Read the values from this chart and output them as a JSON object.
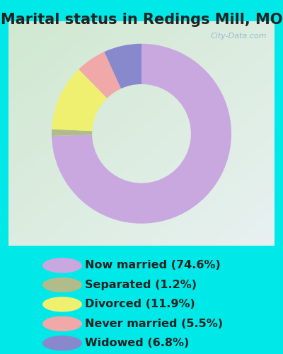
{
  "title": "Marital status in Redings Mill, MO",
  "slices": [
    74.6,
    1.2,
    11.9,
    5.5,
    6.8
  ],
  "labels": [
    "Now married (74.6%)",
    "Separated (1.2%)",
    "Divorced (11.9%)",
    "Never married (5.5%)",
    "Widowed (6.8%)"
  ],
  "colors": [
    "#c9a8e0",
    "#b0bc8a",
    "#f0f070",
    "#f0a8a8",
    "#8888cc"
  ],
  "background_color": "#00e8e8",
  "title_fontsize": 15,
  "legend_fontsize": 11.5,
  "watermark": "City-Data.com"
}
